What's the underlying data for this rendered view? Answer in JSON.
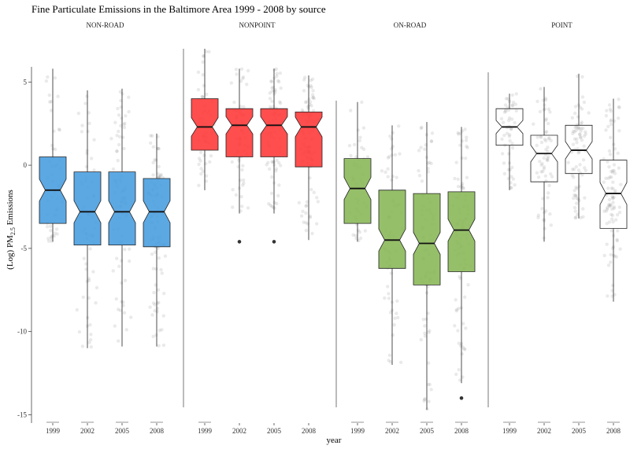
{
  "chart_data": {
    "type": "boxplot",
    "title": "Fine Particulate Emissions in the Baltimore Area 1999 - 2008 by source",
    "xlabel": "year",
    "ylabel_main": "(Log) PM",
    "ylabel_sub": "2.5",
    "ylabel_rest": " Emissions",
    "ylim": [
      -15.5,
      7
    ],
    "y_ticks": [
      -15,
      -10,
      -5,
      0,
      5
    ],
    "y_tick_labels": [
      "-15",
      "-10",
      "-5",
      "0",
      "5"
    ],
    "categories": [
      "1999",
      "2002",
      "2005",
      "2008"
    ],
    "facets": [
      {
        "name": "NON-ROAD",
        "color": "#4a9ee0",
        "boxes": [
          {
            "year": "1999",
            "whisker_low": -4.6,
            "q1": -3.5,
            "median": -1.5,
            "q3": 0.5,
            "whisker_high": 5.8,
            "outliers": []
          },
          {
            "year": "2002",
            "whisker_low": -11.0,
            "q1": -4.8,
            "median": -2.8,
            "q3": -0.4,
            "whisker_high": 4.5,
            "outliers": []
          },
          {
            "year": "2005",
            "whisker_low": -10.9,
            "q1": -4.8,
            "median": -2.8,
            "q3": -0.4,
            "whisker_high": 4.6,
            "outliers": []
          },
          {
            "year": "2008",
            "whisker_low": -10.9,
            "q1": -4.9,
            "median": -2.8,
            "q3": -0.8,
            "whisker_high": 1.9,
            "outliers": []
          }
        ]
      },
      {
        "name": "NONPOINT",
        "color": "#ff3b3b",
        "boxes": [
          {
            "year": "1999",
            "whisker_low": -1.5,
            "q1": 0.9,
            "median": 2.3,
            "q3": 4.0,
            "whisker_high": 7.0,
            "outliers": []
          },
          {
            "year": "2002",
            "whisker_low": -2.9,
            "q1": 0.5,
            "median": 2.4,
            "q3": 3.4,
            "whisker_high": 5.8,
            "outliers": [
              -4.6
            ]
          },
          {
            "year": "2005",
            "whisker_low": -2.9,
            "q1": 0.5,
            "median": 2.4,
            "q3": 3.4,
            "whisker_high": 5.8,
            "outliers": [
              -4.6
            ]
          },
          {
            "year": "2008",
            "whisker_low": -4.5,
            "q1": -0.1,
            "median": 2.3,
            "q3": 3.2,
            "whisker_high": 5.4,
            "outliers": []
          }
        ]
      },
      {
        "name": "ON-ROAD",
        "color": "#8bb85a",
        "boxes": [
          {
            "year": "1999",
            "whisker_low": -4.6,
            "q1": -3.5,
            "median": -1.4,
            "q3": 0.4,
            "whisker_high": 3.8,
            "outliers": []
          },
          {
            "year": "2002",
            "whisker_low": -12.0,
            "q1": -6.2,
            "median": -4.5,
            "q3": -1.5,
            "whisker_high": 2.4,
            "outliers": []
          },
          {
            "year": "2005",
            "whisker_low": -14.7,
            "q1": -7.2,
            "median": -4.7,
            "q3": -1.7,
            "whisker_high": 2.6,
            "outliers": []
          },
          {
            "year": "2008",
            "whisker_low": -13.1,
            "q1": -6.4,
            "median": -3.9,
            "q3": -1.6,
            "whisker_high": 2.3,
            "outliers": [
              -14.0
            ]
          }
        ]
      },
      {
        "name": "POINT",
        "color": "#ffffff",
        "boxes": [
          {
            "year": "1999",
            "whisker_low": -1.5,
            "q1": 1.2,
            "median": 2.3,
            "q3": 3.4,
            "whisker_high": 4.3,
            "outliers": []
          },
          {
            "year": "2002",
            "whisker_low": -4.6,
            "q1": -1.0,
            "median": 0.7,
            "q3": 1.8,
            "whisker_high": 4.7,
            "outliers": []
          },
          {
            "year": "2005",
            "whisker_low": -3.2,
            "q1": -0.5,
            "median": 0.9,
            "q3": 2.4,
            "whisker_high": 5.5,
            "outliers": []
          },
          {
            "year": "2008",
            "whisker_low": -8.2,
            "q1": -3.8,
            "median": -1.7,
            "q3": 0.3,
            "whisker_high": 4.0,
            "outliers": []
          }
        ]
      }
    ]
  }
}
